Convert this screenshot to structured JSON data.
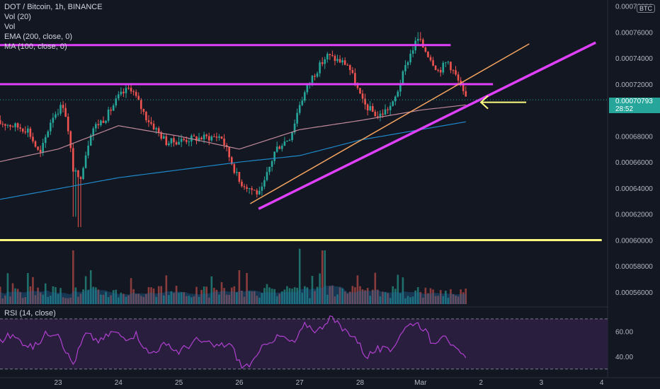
{
  "legend": {
    "symbol_line": "DOT / Bitcoin, 1h, BINANCE",
    "vol": "Vol (20)",
    "vol_short": "Vol",
    "ema": "EMA (200, close, 0)",
    "ma": "MA (100, close, 0)"
  },
  "rsi_label": "RSI (14, close)",
  "currency_badge": "BTC",
  "last_price": "0.00070793",
  "countdown": "28:52",
  "colors": {
    "background": "#131722",
    "up": "#26a69a",
    "down": "#ef5350",
    "magenta": "#e040fb",
    "yellow": "#ffff80",
    "orange": "#f4a460",
    "ema": "#1e88c8",
    "ma": "#c08a9a",
    "rsi": "#b040d0",
    "rsi_band": "#2a1e3f"
  },
  "chart_data": [
    {
      "type": "candlestick",
      "title": "DOT / Bitcoin, 1h, BINANCE",
      "x_ticks": [
        "23",
        "24",
        "25",
        "26",
        "27",
        "28",
        "Mar",
        "2",
        "3",
        "4"
      ],
      "y_ticks": [
        "0.00078000",
        "0.00076000",
        "0.00074000",
        "0.00072000",
        "0.00070000",
        "0.00068000",
        "0.00066000",
        "0.00064000",
        "0.00062000",
        "0.00060000",
        "0.00058000",
        "0.00056000"
      ],
      "ylim": [
        0.000554,
        0.000782
      ],
      "price_anchors": [
        {
          "x": 22.1,
          "y": 0.00069
        },
        {
          "x": 22.5,
          "y": 0.000685
        },
        {
          "x": 22.7,
          "y": 0.000665
        },
        {
          "x": 22.9,
          "y": 0.000695
        },
        {
          "x": 23.1,
          "y": 0.000705
        },
        {
          "x": 23.25,
          "y": 0.000655
        },
        {
          "x": 23.35,
          "y": 0.000645
        },
        {
          "x": 23.55,
          "y": 0.000685
        },
        {
          "x": 23.8,
          "y": 0.000695
        },
        {
          "x": 24.0,
          "y": 0.00071
        },
        {
          "x": 24.2,
          "y": 0.000718
        },
        {
          "x": 24.45,
          "y": 0.000695
        },
        {
          "x": 24.8,
          "y": 0.000675
        },
        {
          "x": 25.2,
          "y": 0.000678
        },
        {
          "x": 25.7,
          "y": 0.00068
        },
        {
          "x": 26.0,
          "y": 0.000645
        },
        {
          "x": 26.35,
          "y": 0.000635
        },
        {
          "x": 26.6,
          "y": 0.00067
        },
        {
          "x": 26.85,
          "y": 0.00068
        },
        {
          "x": 27.0,
          "y": 0.000705
        },
        {
          "x": 27.2,
          "y": 0.000725
        },
        {
          "x": 27.45,
          "y": 0.000742
        },
        {
          "x": 27.8,
          "y": 0.000735
        },
        {
          "x": 28.05,
          "y": 0.000705
        },
        {
          "x": 28.3,
          "y": 0.000695
        },
        {
          "x": 28.55,
          "y": 0.000705
        },
        {
          "x": 28.8,
          "y": 0.00074
        },
        {
          "x": 28.95,
          "y": 0.000755
        },
        {
          "x": 29.1,
          "y": 0.000745
        },
        {
          "x": 29.3,
          "y": 0.00073
        },
        {
          "x": 29.45,
          "y": 0.000738
        },
        {
          "x": 29.6,
          "y": 0.000725
        },
        {
          "x": 29.75,
          "y": 0.0007079
        }
      ],
      "ema200": [
        {
          "x": 22.0,
          "y": 0.000631
        },
        {
          "x": 24.0,
          "y": 0.000648
        },
        {
          "x": 26.0,
          "y": 0.00066
        },
        {
          "x": 27.0,
          "y": 0.000665
        },
        {
          "x": 28.0,
          "y": 0.000677
        },
        {
          "x": 29.0,
          "y": 0.000685
        },
        {
          "x": 29.75,
          "y": 0.000691
        }
      ],
      "ma100": [
        {
          "x": 22.0,
          "y": 0.00066
        },
        {
          "x": 23.0,
          "y": 0.00067
        },
        {
          "x": 24.0,
          "y": 0.000688
        },
        {
          "x": 25.0,
          "y": 0.00068
        },
        {
          "x": 26.0,
          "y": 0.00067
        },
        {
          "x": 27.0,
          "y": 0.000685
        },
        {
          "x": 28.0,
          "y": 0.000692
        },
        {
          "x": 29.0,
          "y": 0.0007
        },
        {
          "x": 29.75,
          "y": 0.000704
        }
      ],
      "drawings": [
        {
          "type": "hline",
          "color": "#e040fb",
          "y": 0.00075,
          "x_from": 22.0,
          "x_to": 29.5
        },
        {
          "type": "hline",
          "color": "#e040fb",
          "y": 0.00072,
          "x_from": 22.0,
          "x_to": 30.2
        },
        {
          "type": "hline",
          "color": "#ffff80",
          "y": 0.0006,
          "x_from": 22.0,
          "x_to": 32.0
        },
        {
          "type": "trendline",
          "color": "#e040fb",
          "from": {
            "x": 26.32,
            "y": 0.000624
          },
          "to": {
            "x": 31.9,
            "y": 0.000752
          }
        },
        {
          "type": "trendline",
          "color": "#f4a460",
          "from": {
            "x": 26.18,
            "y": 0.000628
          },
          "to": {
            "x": 30.8,
            "y": 0.000751
          }
        },
        {
          "type": "arrow",
          "color": "#ffff80",
          "from": {
            "x": 30.75,
            "y": 0.000706
          },
          "to": {
            "x": 30.0,
            "y": 0.000706
          }
        }
      ]
    },
    {
      "type": "bar",
      "title": "Vol (20)",
      "x_range": [
        22.0,
        29.75
      ],
      "baseline_scale_note": "relative bar heights",
      "spikes": [
        {
          "x": 23.25,
          "value": 0.95
        },
        {
          "x": 22.5,
          "value": 0.55
        },
        {
          "x": 23.55,
          "value": 0.6
        },
        {
          "x": 26.0,
          "value": 0.6
        },
        {
          "x": 27.0,
          "value": 0.98
        },
        {
          "x": 27.4,
          "value": 0.95
        },
        {
          "x": 27.2,
          "value": 0.5
        },
        {
          "x": 28.95,
          "value": 0.3
        }
      ]
    },
    {
      "type": "line",
      "title": "RSI (14, close)",
      "y_ticks": [
        "60.00",
        "40.00"
      ],
      "ylim": [
        27,
        75
      ],
      "bands": [
        70,
        30
      ],
      "values": [
        {
          "x": 22.0,
          "y": 50
        },
        {
          "x": 22.2,
          "y": 57
        },
        {
          "x": 22.4,
          "y": 52
        },
        {
          "x": 22.6,
          "y": 47
        },
        {
          "x": 22.8,
          "y": 58
        },
        {
          "x": 23.0,
          "y": 60
        },
        {
          "x": 23.15,
          "y": 42
        },
        {
          "x": 23.25,
          "y": 34
        },
        {
          "x": 23.45,
          "y": 58
        },
        {
          "x": 23.7,
          "y": 52
        },
        {
          "x": 23.9,
          "y": 60
        },
        {
          "x": 24.1,
          "y": 55
        },
        {
          "x": 24.3,
          "y": 58
        },
        {
          "x": 24.5,
          "y": 42
        },
        {
          "x": 24.75,
          "y": 49
        },
        {
          "x": 25.0,
          "y": 44
        },
        {
          "x": 25.3,
          "y": 53
        },
        {
          "x": 25.6,
          "y": 48
        },
        {
          "x": 25.85,
          "y": 50
        },
        {
          "x": 26.05,
          "y": 31
        },
        {
          "x": 26.25,
          "y": 36
        },
        {
          "x": 26.45,
          "y": 52
        },
        {
          "x": 26.7,
          "y": 56
        },
        {
          "x": 26.9,
          "y": 50
        },
        {
          "x": 27.1,
          "y": 66
        },
        {
          "x": 27.3,
          "y": 60
        },
        {
          "x": 27.5,
          "y": 72
        },
        {
          "x": 27.7,
          "y": 62
        },
        {
          "x": 27.9,
          "y": 57
        },
        {
          "x": 28.1,
          "y": 40
        },
        {
          "x": 28.3,
          "y": 46
        },
        {
          "x": 28.5,
          "y": 44
        },
        {
          "x": 28.7,
          "y": 61
        },
        {
          "x": 28.9,
          "y": 68
        },
        {
          "x": 29.05,
          "y": 63
        },
        {
          "x": 29.2,
          "y": 50
        },
        {
          "x": 29.4,
          "y": 60
        },
        {
          "x": 29.55,
          "y": 46
        },
        {
          "x": 29.75,
          "y": 38
        }
      ]
    }
  ]
}
